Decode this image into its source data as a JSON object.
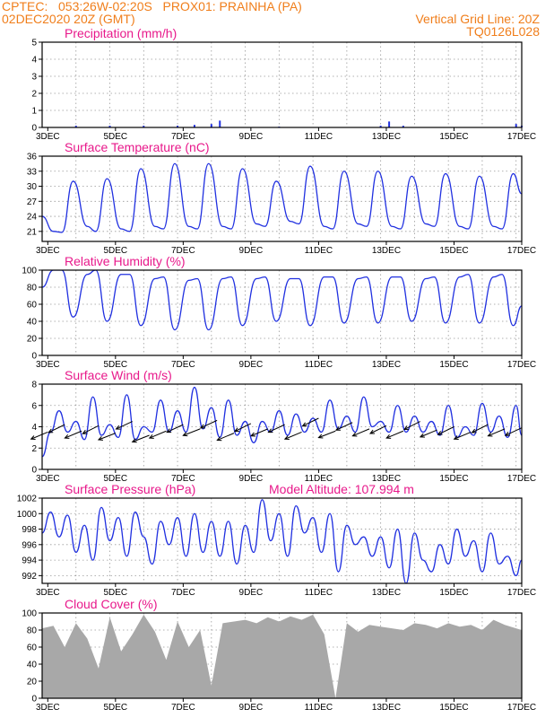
{
  "header": {
    "line1_left": "CPTEC:   053:26W-02:20S   PROX01: PRAINHA (PA)",
    "line2_left": "02DEC2020 20Z (GMT)",
    "line2_right": "Vertical Grid Line: 20Z",
    "line3_right": "TQ0126L028"
  },
  "colors": {
    "header": "#f07e1b",
    "title": "#e8198b",
    "line": "#2030e0",
    "cloud": "#a8a8a8",
    "grid": "#999999",
    "wind_arrow": "#000000"
  },
  "x_axis": {
    "labels": [
      "3DEC",
      "5DEC",
      "7DEC",
      "9DEC",
      "11DEC",
      "13DEC",
      "15DEC",
      "17DEC"
    ]
  },
  "chart_data": [
    {
      "type": "bar",
      "id": "precip",
      "title": "Precipitation (mm/h)",
      "ylim": [
        0,
        5
      ],
      "yticks": [
        0,
        1,
        2,
        3,
        4,
        5
      ],
      "x": [
        "3DEC 20Z",
        "4DEC 20Z",
        "5DEC 20Z",
        "6DEC 20Z",
        "7DEC 08Z",
        "7DEC 20Z",
        "8DEC 02Z",
        "9DEC 20Z",
        "12DEC 20Z",
        "13DEC 02Z",
        "13DEC 12Z",
        "16DEC 20Z",
        "17DEC 00Z"
      ],
      "values": [
        0.1,
        0.1,
        0.1,
        0.1,
        0.15,
        0.2,
        0.4,
        0.05,
        0.1,
        0.35,
        0.1,
        0.2,
        0.1
      ]
    },
    {
      "type": "line",
      "id": "temp",
      "title": "Surface Temperature (nC)",
      "ylim": [
        19,
        36
      ],
      "yticks": [
        21,
        24,
        27,
        30,
        33,
        36
      ],
      "x": [
        "2DEC 20Z",
        "3DEC 04Z",
        "3DEC 10Z",
        "3DEC 18Z",
        "4DEC 04Z",
        "4DEC 10Z",
        "4DEC 18Z",
        "5DEC 04Z",
        "5DEC 10Z",
        "5DEC 18Z",
        "6DEC 04Z",
        "6DEC 10Z",
        "6DEC 18Z",
        "7DEC 04Z",
        "7DEC 10Z",
        "7DEC 18Z",
        "8DEC 04Z",
        "8DEC 10Z",
        "8DEC 18Z",
        "9DEC 04Z",
        "9DEC 10Z",
        "9DEC 18Z",
        "10DEC 04Z",
        "10DEC 10Z",
        "10DEC 18Z",
        "11DEC 04Z",
        "11DEC 10Z",
        "11DEC 18Z",
        "12DEC 04Z",
        "12DEC 10Z",
        "12DEC 18Z",
        "13DEC 04Z",
        "13DEC 10Z",
        "13DEC 18Z",
        "14DEC 04Z",
        "14DEC 10Z",
        "14DEC 18Z",
        "15DEC 04Z",
        "15DEC 10Z",
        "15DEC 18Z",
        "16DEC 04Z",
        "16DEC 10Z",
        "16DEC 18Z",
        "17DEC 00Z"
      ],
      "values": [
        24,
        21,
        20.8,
        31,
        22,
        21,
        31.5,
        21.5,
        21,
        33.5,
        22,
        21.5,
        34.5,
        22,
        21.5,
        34.5,
        22,
        21.5,
        33.5,
        22.5,
        22,
        31,
        23,
        22.5,
        34,
        22,
        21.5,
        33,
        22.5,
        22,
        33,
        22,
        21.5,
        32,
        22.5,
        22,
        32.5,
        22,
        21.5,
        32,
        22,
        21.5,
        32.5,
        28.5
      ]
    },
    {
      "type": "line",
      "id": "rh",
      "title": "Relative Humidity (%)",
      "ylim": [
        0,
        100
      ],
      "yticks": [
        0,
        20,
        40,
        60,
        80,
        100
      ],
      "x": [
        "2DEC 20Z",
        "3DEC 04Z",
        "3DEC 10Z",
        "3DEC 18Z",
        "4DEC 04Z",
        "4DEC 10Z",
        "4DEC 18Z",
        "5DEC 04Z",
        "5DEC 10Z",
        "5DEC 18Z",
        "6DEC 04Z",
        "6DEC 10Z",
        "6DEC 18Z",
        "7DEC 04Z",
        "7DEC 10Z",
        "7DEC 18Z",
        "8DEC 04Z",
        "8DEC 10Z",
        "8DEC 18Z",
        "9DEC 04Z",
        "9DEC 10Z",
        "9DEC 18Z",
        "10DEC 04Z",
        "10DEC 10Z",
        "10DEC 18Z",
        "11DEC 04Z",
        "11DEC 10Z",
        "11DEC 18Z",
        "12DEC 04Z",
        "12DEC 10Z",
        "12DEC 18Z",
        "13DEC 04Z",
        "13DEC 10Z",
        "13DEC 18Z",
        "14DEC 04Z",
        "14DEC 10Z",
        "14DEC 18Z",
        "15DEC 04Z",
        "15DEC 10Z",
        "15DEC 18Z",
        "16DEC 04Z",
        "16DEC 10Z",
        "16DEC 18Z",
        "17DEC 00Z"
      ],
      "values": [
        80,
        100,
        100,
        45,
        95,
        100,
        40,
        95,
        95,
        35,
        90,
        92,
        30,
        88,
        90,
        30,
        90,
        92,
        35,
        90,
        92,
        40,
        90,
        90,
        35,
        92,
        92,
        38,
        90,
        92,
        38,
        92,
        92,
        40,
        90,
        92,
        38,
        92,
        95,
        38,
        92,
        95,
        35,
        58
      ]
    },
    {
      "type": "line",
      "id": "wind",
      "title": "Surface Wind (m/s)",
      "ylim": [
        0,
        8
      ],
      "yticks": [
        0,
        2,
        4,
        6,
        8
      ],
      "x": [
        "2DEC 20Z",
        "3DEC 02Z",
        "3DEC 08Z",
        "3DEC 14Z",
        "3DEC 20Z",
        "4DEC 02Z",
        "4DEC 08Z",
        "4DEC 14Z",
        "4DEC 20Z",
        "5DEC 02Z",
        "5DEC 08Z",
        "5DEC 14Z",
        "5DEC 20Z",
        "6DEC 02Z",
        "6DEC 08Z",
        "6DEC 14Z",
        "6DEC 20Z",
        "7DEC 02Z",
        "7DEC 08Z",
        "7DEC 14Z",
        "7DEC 20Z",
        "8DEC 02Z",
        "8DEC 08Z",
        "8DEC 14Z",
        "8DEC 20Z",
        "9DEC 02Z",
        "9DEC 08Z",
        "9DEC 14Z",
        "9DEC 20Z",
        "10DEC 02Z",
        "10DEC 08Z",
        "10DEC 14Z",
        "10DEC 20Z",
        "11DEC 02Z",
        "11DEC 08Z",
        "11DEC 14Z",
        "11DEC 20Z",
        "12DEC 02Z",
        "12DEC 08Z",
        "12DEC 14Z",
        "12DEC 20Z",
        "13DEC 02Z",
        "13DEC 08Z",
        "13DEC 14Z",
        "13DEC 20Z",
        "14DEC 02Z",
        "14DEC 08Z",
        "14DEC 14Z",
        "14DEC 20Z",
        "15DEC 02Z",
        "15DEC 08Z",
        "15DEC 14Z",
        "15DEC 20Z",
        "16DEC 02Z",
        "16DEC 08Z",
        "16DEC 14Z",
        "16DEC 20Z",
        "17DEC 00Z"
      ],
      "values": [
        1.2,
        3.5,
        5.5,
        3.5,
        4.5,
        2.8,
        6.8,
        3.2,
        4.2,
        3.0,
        7.0,
        2.8,
        4.0,
        3.5,
        6.5,
        3.5,
        5.5,
        3.5,
        7.7,
        3.8,
        5.8,
        3.0,
        6.5,
        3.2,
        4.5,
        2.5,
        4.5,
        3.5,
        5.5,
        3.2,
        5.2,
        3.5,
        4.8,
        3.5,
        6.5,
        3.8,
        5.0,
        3.5,
        6.8,
        4.0,
        4.5,
        3.5,
        6.0,
        3.5,
        5.0,
        3.5,
        4.5,
        3.2,
        6.0,
        3.0,
        4.0,
        3.2,
        6.2,
        3.5,
        5.0,
        3.0,
        6.0,
        3.2
      ],
      "arrows_x": [
        "3DEC 00Z",
        "3DEC 12Z",
        "4DEC 00Z",
        "4DEC 12Z",
        "5DEC 00Z",
        "5DEC 12Z",
        "6DEC 00Z",
        "6DEC 12Z",
        "7DEC 00Z",
        "7DEC 12Z",
        "8DEC 00Z",
        "8DEC 12Z",
        "9DEC 00Z",
        "9DEC 12Z",
        "10DEC 00Z",
        "10DEC 12Z",
        "11DEC 00Z",
        "11DEC 12Z",
        "12DEC 00Z",
        "12DEC 12Z",
        "13DEC 00Z",
        "13DEC 12Z",
        "14DEC 00Z",
        "14DEC 12Z",
        "15DEC 00Z",
        "15DEC 12Z",
        "16DEC 00Z",
        "16DEC 12Z",
        "17DEC 00Z"
      ],
      "arrows_speed": [
        3.5,
        4.2,
        3.6,
        4.1,
        3.4,
        4.5,
        3.2,
        3.6,
        4.2,
        3.8,
        4.6,
        3.4,
        4.3,
        3.8,
        4.2,
        3.5,
        4.8,
        3.6,
        4.4,
        3.8,
        4.1,
        3.6,
        4.5,
        3.7,
        4.0,
        3.5,
        4.2,
        3.8,
        3.9
      ],
      "arrows_dir_deg": [
        60,
        75,
        60,
        80,
        55,
        70,
        55,
        60,
        70,
        55,
        70,
        60,
        75,
        60,
        70,
        60,
        75,
        55,
        70,
        60,
        75,
        60,
        80,
        60,
        75,
        60,
        80,
        60,
        70
      ]
    },
    {
      "type": "line",
      "id": "pressure",
      "title": "Surface Pressure (hPa)",
      "annotation": "Model Altitude: 107.994 m",
      "ylim": [
        991,
        1002
      ],
      "yticks": [
        992,
        994,
        996,
        998,
        1000,
        1002
      ],
      "x": [
        "2DEC 20Z",
        "3DEC 02Z",
        "3DEC 08Z",
        "3DEC 14Z",
        "3DEC 20Z",
        "4DEC 02Z",
        "4DEC 08Z",
        "4DEC 14Z",
        "4DEC 20Z",
        "5DEC 02Z",
        "5DEC 08Z",
        "5DEC 14Z",
        "5DEC 20Z",
        "6DEC 02Z",
        "6DEC 08Z",
        "6DEC 14Z",
        "6DEC 20Z",
        "7DEC 02Z",
        "7DEC 08Z",
        "7DEC 14Z",
        "7DEC 20Z",
        "8DEC 02Z",
        "8DEC 08Z",
        "8DEC 14Z",
        "8DEC 20Z",
        "9DEC 02Z",
        "9DEC 08Z",
        "9DEC 14Z",
        "9DEC 20Z",
        "10DEC 02Z",
        "10DEC 08Z",
        "10DEC 14Z",
        "10DEC 20Z",
        "11DEC 02Z",
        "11DEC 08Z",
        "11DEC 14Z",
        "11DEC 20Z",
        "12DEC 02Z",
        "12DEC 08Z",
        "12DEC 14Z",
        "12DEC 20Z",
        "13DEC 02Z",
        "13DEC 08Z",
        "13DEC 14Z",
        "13DEC 20Z",
        "14DEC 02Z",
        "14DEC 08Z",
        "14DEC 14Z",
        "14DEC 20Z",
        "15DEC 02Z",
        "15DEC 08Z",
        "15DEC 14Z",
        "15DEC 20Z",
        "16DEC 02Z",
        "16DEC 08Z",
        "16DEC 14Z",
        "16DEC 20Z",
        "17DEC 00Z"
      ],
      "values": [
        997.5,
        1000.2,
        997.0,
        999.8,
        995.0,
        998.5,
        994.0,
        1000.8,
        996.5,
        999.5,
        994.5,
        1000.2,
        997.0,
        993.5,
        999.0,
        996.0,
        999.5,
        994.5,
        1000.0,
        995.0,
        999.0,
        994.5,
        999.0,
        993.5,
        998.5,
        995.0,
        1001.8,
        996.5,
        1000.0,
        994.5,
        1001.0,
        997.5,
        999.5,
        995.0,
        1000.0,
        992.5,
        998.5,
        996.0,
        997.0,
        994.5,
        997.0,
        993.0,
        998.0,
        991.0,
        997.5,
        994.0,
        992.5,
        996.0,
        993.5,
        998.0,
        994.5,
        996.5,
        992.5,
        997.5,
        993.5,
        994.5,
        992.0,
        994.0
      ]
    },
    {
      "type": "area",
      "id": "cloud",
      "title": "Cloud Cover (%)",
      "ylim": [
        0,
        100
      ],
      "yticks": [
        0,
        20,
        40,
        60,
        80,
        100
      ],
      "x": [
        "2DEC 20Z",
        "3DEC 04Z",
        "3DEC 12Z",
        "3DEC 20Z",
        "4DEC 04Z",
        "4DEC 12Z",
        "4DEC 20Z",
        "5DEC 04Z",
        "5DEC 12Z",
        "5DEC 20Z",
        "6DEC 04Z",
        "6DEC 12Z",
        "6DEC 20Z",
        "7DEC 04Z",
        "7DEC 12Z",
        "7DEC 20Z",
        "8DEC 04Z",
        "8DEC 12Z",
        "8DEC 20Z",
        "9DEC 04Z",
        "9DEC 12Z",
        "9DEC 20Z",
        "10DEC 04Z",
        "10DEC 12Z",
        "10DEC 20Z",
        "11DEC 04Z",
        "11DEC 12Z",
        "11DEC 20Z",
        "12DEC 04Z",
        "12DEC 12Z",
        "12DEC 20Z",
        "13DEC 04Z",
        "13DEC 12Z",
        "13DEC 20Z",
        "14DEC 04Z",
        "14DEC 12Z",
        "14DEC 20Z",
        "15DEC 04Z",
        "15DEC 12Z",
        "15DEC 20Z",
        "16DEC 04Z",
        "16DEC 12Z",
        "16DEC 20Z",
        "17DEC 00Z"
      ],
      "values": [
        82,
        85,
        60,
        88,
        70,
        35,
        95,
        55,
        75,
        98,
        78,
        45,
        90,
        60,
        80,
        15,
        88,
        90,
        92,
        88,
        95,
        90,
        96,
        92,
        98,
        75,
        0,
        88,
        78,
        86,
        84,
        82,
        80,
        88,
        86,
        82,
        88,
        84,
        86,
        80,
        92,
        86,
        82,
        80
      ]
    }
  ]
}
